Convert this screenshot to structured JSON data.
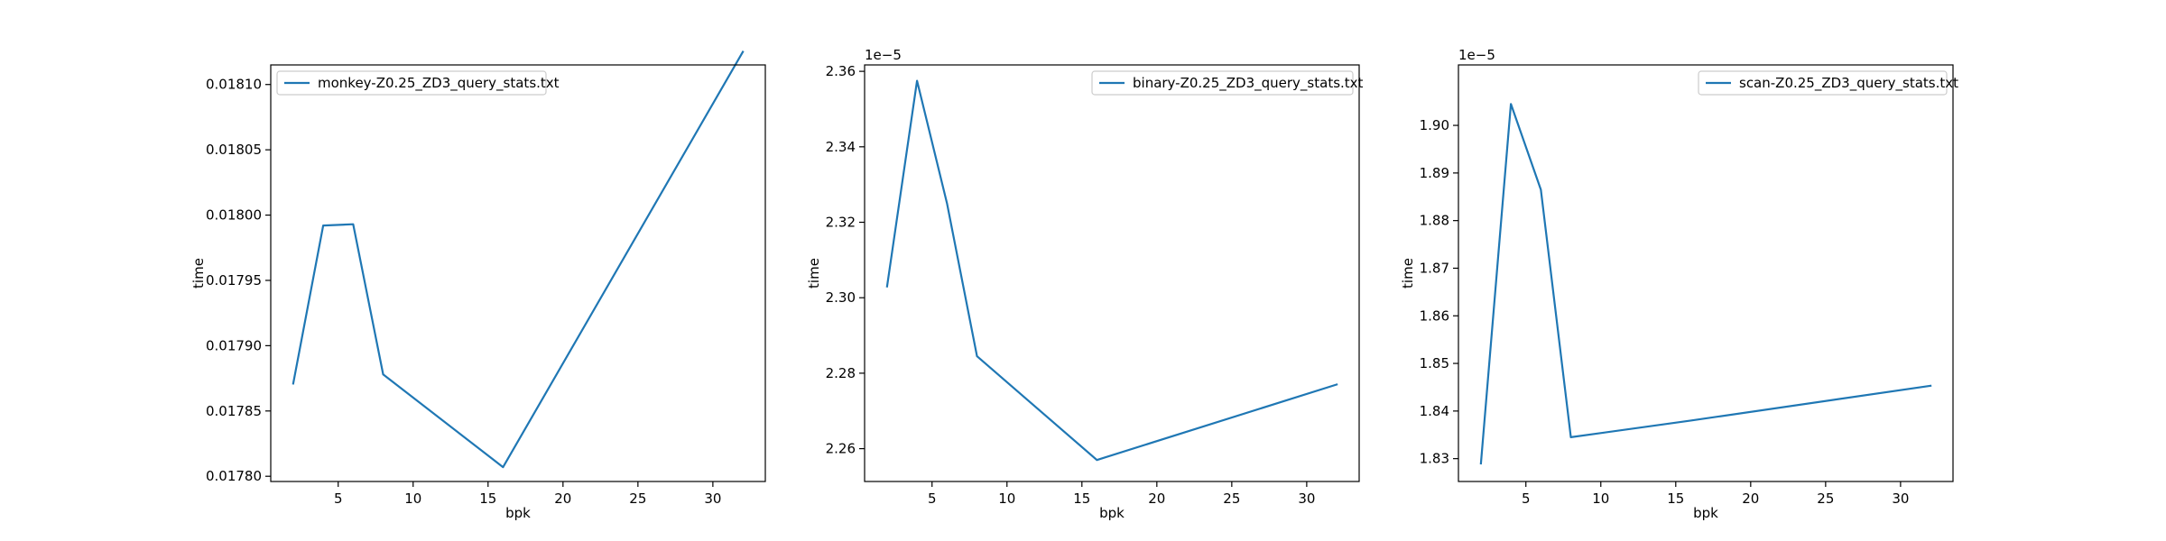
{
  "chart_data": [
    {
      "type": "line",
      "xlabel": "bpk",
      "ylabel": "time",
      "legend_position": "upper left",
      "offset_text": "",
      "y_decimals": 5,
      "xlim": [
        0.5,
        33.5
      ],
      "ylim": [
        0.017796,
        0.018115
      ],
      "xticks": [
        5,
        10,
        15,
        20,
        25,
        30
      ],
      "yticks": [
        0.0178,
        0.01785,
        0.0179,
        0.01795,
        0.018,
        0.01805,
        0.0181
      ],
      "series": [
        {
          "name": "monkey-Z0.25_ZD3_query_stats.txt",
          "color": "#1f77b4",
          "x": [
            2,
            4,
            6,
            8,
            16,
            32
          ],
          "y": [
            0.017871,
            0.017992,
            0.017993,
            0.017878,
            0.017807,
            0.018125
          ]
        }
      ]
    },
    {
      "type": "line",
      "xlabel": "bpk",
      "ylabel": "time",
      "legend_position": "upper right",
      "offset_text": "1e−5",
      "y_scale": 100000,
      "y_decimals": 2,
      "xlim": [
        0.5,
        33.5
      ],
      "ylim": [
        2.2513,
        2.3617
      ],
      "xticks": [
        5,
        10,
        15,
        20,
        25,
        30
      ],
      "yticks": [
        2.26,
        2.28,
        2.3,
        2.32,
        2.34,
        2.36
      ],
      "series": [
        {
          "name": "binary-Z0.25_ZD3_query_stats.txt",
          "color": "#1f77b4",
          "x": [
            2,
            4,
            6,
            8,
            16,
            32
          ],
          "y": [
            2.303,
            2.3575,
            2.325,
            2.2845,
            2.257,
            2.277
          ]
        }
      ]
    },
    {
      "type": "line",
      "xlabel": "bpk",
      "ylabel": "time",
      "legend_position": "upper right",
      "offset_text": "1e−5",
      "y_scale": 100000,
      "y_decimals": 2,
      "xlim": [
        0.5,
        33.5
      ],
      "ylim": [
        1.8252,
        1.9127
      ],
      "xticks": [
        5,
        10,
        15,
        20,
        25,
        30
      ],
      "yticks": [
        1.83,
        1.84,
        1.85,
        1.86,
        1.87,
        1.88,
        1.89,
        1.9
      ],
      "series": [
        {
          "name": "scan-Z0.25_ZD3_query_stats.txt",
          "color": "#1f77b4",
          "x": [
            2,
            4,
            6,
            8,
            16,
            32
          ],
          "y": [
            1.829,
            1.9045,
            1.8865,
            1.8345,
            1.838,
            1.8453
          ]
        }
      ]
    }
  ]
}
